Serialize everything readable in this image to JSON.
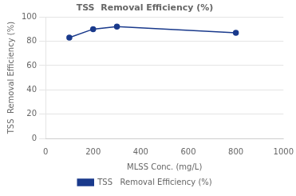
{
  "chart_data": {
    "type": "line",
    "title": "TSS  Removal Efficiency (%)",
    "xlabel": "MLSS Conc. (mg/L)",
    "ylabel": "TSS  Removal Efficiency (%)",
    "x": [
      100,
      200,
      300,
      800
    ],
    "series": [
      {
        "name": "TSS   Removal Efficiency (%)",
        "color": "#1a3a8c",
        "marker": "o",
        "values": [
          83,
          90,
          92,
          87
        ]
      }
    ],
    "xlim": [
      0,
      1000
    ],
    "ylim": [
      0,
      100
    ],
    "xticks": [
      0,
      200,
      400,
      600,
      800,
      1000
    ],
    "yticks": [
      0,
      20,
      40,
      60,
      80,
      100
    ],
    "grid": "y",
    "legend": "bottom"
  }
}
